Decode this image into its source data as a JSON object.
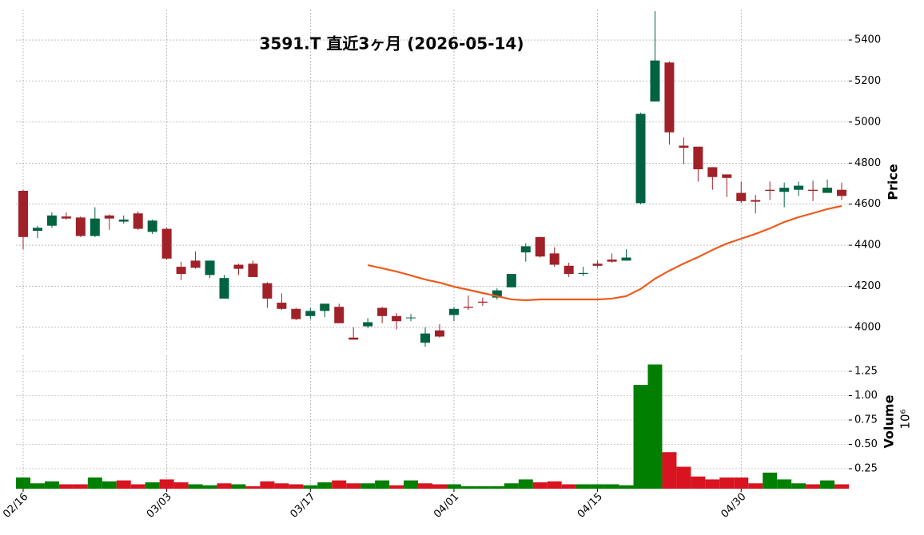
{
  "chart_data": [
    {
      "type": "candlestick",
      "title": "3591.T  直近3ヶ月  (2026-05-14)",
      "ylabel": "Price",
      "categories": [
        "02/16",
        null,
        null,
        null,
        null,
        null,
        null,
        null,
        null,
        null,
        "03/03",
        null,
        null,
        null,
        null,
        null,
        null,
        null,
        null,
        null,
        "03/17",
        null,
        null,
        null,
        null,
        null,
        null,
        null,
        null,
        null,
        "04/01",
        null,
        null,
        null,
        null,
        null,
        null,
        null,
        null,
        null,
        "04/15",
        null,
        null,
        null,
        null,
        null,
        null,
        null,
        null,
        null,
        "04/30",
        null,
        null,
        null,
        null,
        null,
        null,
        null
      ],
      "open": [
        4665,
        4470,
        4495,
        4540,
        4535,
        4445,
        4545,
        4515,
        4555,
        4465,
        4480,
        4295,
        4325,
        4255,
        4140,
        4305,
        4310,
        4215,
        4120,
        4090,
        4055,
        4080,
        4100,
        3950,
        4005,
        4095,
        4055,
        4045,
        3925,
        3985,
        4060,
        4100,
        4125,
        4145,
        4195,
        4365,
        4440,
        4360,
        4300,
        4260,
        4310,
        4330,
        4325,
        4605,
        5100,
        5290,
        4885,
        4880,
        4780,
        4745,
        4655,
        4620,
        4670,
        4660,
        4670,
        4670,
        4655,
        4670
      ],
      "high": [
        4670,
        4495,
        4560,
        4560,
        4540,
        4585,
        4550,
        4545,
        4565,
        4525,
        4485,
        4320,
        4370,
        4325,
        4255,
        4310,
        4325,
        4220,
        4165,
        4095,
        4095,
        4115,
        4115,
        4000,
        4045,
        4100,
        4070,
        4065,
        4000,
        4015,
        4100,
        4155,
        4145,
        4190,
        4260,
        4410,
        4440,
        4390,
        4315,
        4295,
        4325,
        4360,
        4380,
        5045,
        5540,
        5295,
        4925,
        4880,
        4780,
        4745,
        4710,
        4645,
        4710,
        4705,
        4710,
        4715,
        4720,
        4705
      ],
      "low": [
        4380,
        4435,
        4485,
        4525,
        4440,
        4440,
        4475,
        4505,
        4475,
        4455,
        4330,
        4230,
        4285,
        4240,
        4140,
        4255,
        4245,
        4095,
        4085,
        4035,
        4040,
        4050,
        4020,
        3940,
        3995,
        4020,
        3990,
        4030,
        3905,
        3950,
        4030,
        4085,
        4105,
        4135,
        4195,
        4320,
        4340,
        4295,
        4245,
        4250,
        4290,
        4315,
        4325,
        4600,
        5100,
        4890,
        4795,
        4710,
        4670,
        4635,
        4605,
        4555,
        4620,
        4585,
        4640,
        4615,
        4655,
        4620
      ],
      "close": [
        4440,
        4485,
        4545,
        4530,
        4445,
        4530,
        4530,
        4525,
        4480,
        4520,
        4335,
        4260,
        4290,
        4325,
        4240,
        4285,
        4245,
        4140,
        4090,
        4040,
        4080,
        4115,
        4020,
        3940,
        4025,
        4055,
        4030,
        4048,
        3970,
        3955,
        4090,
        4095,
        4120,
        4180,
        4260,
        4395,
        4345,
        4305,
        4260,
        4265,
        4300,
        4320,
        4340,
        5040,
        5300,
        4950,
        4875,
        4770,
        4732,
        4728,
        4615,
        4612,
        4665,
        4680,
        4690,
        4665,
        4680,
        4640
      ],
      "up_color": "#006340",
      "down_color": "#a02128",
      "series": [
        {
          "color": "#ee5a1c",
          "values": [
            null,
            null,
            null,
            null,
            null,
            null,
            null,
            null,
            null,
            null,
            null,
            null,
            null,
            null,
            null,
            null,
            null,
            null,
            null,
            null,
            null,
            null,
            null,
            null,
            4303,
            4288,
            4272,
            4253,
            4233,
            4218,
            4198,
            4183,
            4167,
            4152,
            4136,
            4132,
            4136,
            4136,
            4136,
            4136,
            4136,
            4140,
            4152,
            4187,
            4237,
            4276,
            4311,
            4342,
            4377,
            4408,
            4432,
            4455,
            4482,
            4513,
            4537,
            4556,
            4576,
            4591
          ]
        }
      ],
      "ylim": [
        3883,
        5548
      ],
      "yticks": [
        4000,
        4200,
        4400,
        4600,
        4800,
        5000,
        5200,
        5400
      ],
      "grid": true
    },
    {
      "type": "bar",
      "ylabel": "Volume",
      "offset_label": "10⁶",
      "values": [
        0.16,
        0.1,
        0.12,
        0.09,
        0.09,
        0.16,
        0.12,
        0.13,
        0.09,
        0.11,
        0.14,
        0.11,
        0.09,
        0.08,
        0.1,
        0.09,
        0.07,
        0.12,
        0.1,
        0.09,
        0.08,
        0.11,
        0.13,
        0.1,
        0.1,
        0.13,
        0.08,
        0.13,
        0.1,
        0.09,
        0.09,
        0.07,
        0.07,
        0.07,
        0.1,
        0.14,
        0.11,
        0.12,
        0.09,
        0.09,
        0.09,
        0.09,
        0.08,
        1.11,
        1.32,
        0.42,
        0.27,
        0.17,
        0.14,
        0.16,
        0.16,
        0.1,
        0.21,
        0.14,
        0.1,
        0.09,
        0.13,
        0.09
      ],
      "up_color": "#007f00",
      "down_color": "#d7141f",
      "ylim": [
        0.045,
        1.414
      ],
      "yticks": [
        0.25,
        {
          "value": 0.5,
          "label": "0.50"
        },
        0.75,
        {
          "value": 1.0,
          "label": "1.00"
        },
        1.25
      ],
      "grid": true
    }
  ]
}
